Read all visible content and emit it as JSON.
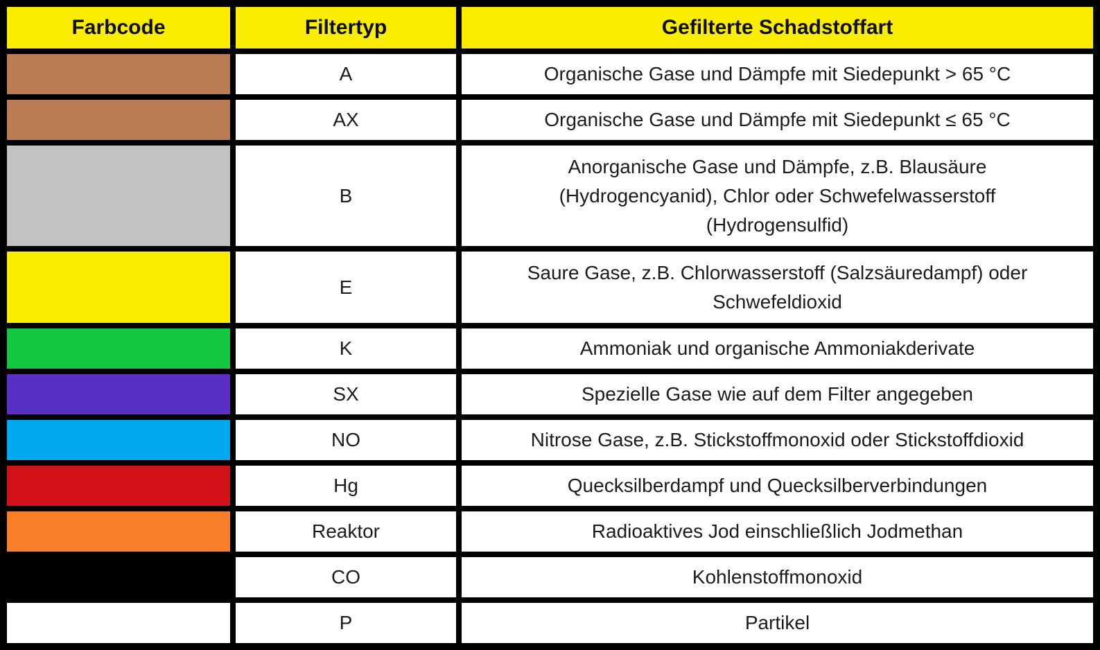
{
  "table": {
    "headers": [
      {
        "label": "Farbcode"
      },
      {
        "label": "Filtertyp"
      },
      {
        "label": "Gefilterte Schadstoffart"
      }
    ],
    "header_bg_color": "#FAED00",
    "grid_color": "#000000",
    "rows": [
      {
        "color_name": "brown",
        "color": "#BA7C53",
        "type": "A",
        "description": "Organische Gase und Dämpfe mit Siedepunkt > 65 °C"
      },
      {
        "color_name": "brown",
        "color": "#BA7C53",
        "type": "AX",
        "description": "Organische Gase und Dämpfe mit Siedepunkt ≤ 65 °C"
      },
      {
        "color_name": "gray",
        "color": "#C2C2C2",
        "type": "B",
        "description": "Anorganische Gase und Dämpfe, z.B. Blausäure (Hydrogencyanid), Chlor oder Schwefelwasserstoff (Hydrogensulfid)"
      },
      {
        "color_name": "yellow",
        "color": "#FAED00",
        "type": "E",
        "description": "Saure Gase, z.B. Chlorwasserstoff (Salzsäuredampf) oder Schwefeldioxid"
      },
      {
        "color_name": "green",
        "color": "#12C843",
        "type": "K",
        "description": "Ammoniak und organische Ammoniakderivate"
      },
      {
        "color_name": "purple",
        "color": "#5A2FC6",
        "type": "SX",
        "description": "Spezielle Gase wie auf dem Filter angegeben"
      },
      {
        "color_name": "blue",
        "color": "#00A9EF",
        "type": "NO",
        "description": "Nitrose Gase, z.B. Stickstoffmonoxid oder Stickstoffdioxid"
      },
      {
        "color_name": "red",
        "color": "#D21017",
        "type": "Hg",
        "description": "Quecksilberdampf und Quecksilberverbindungen"
      },
      {
        "color_name": "orange",
        "color": "#FA7E27",
        "type": "Reaktor",
        "description": "Radioaktives Jod einschließlich Jodmethan"
      },
      {
        "color_name": "black",
        "color": "#000000",
        "type": "CO",
        "description": "Kohlenstoffmonoxid"
      },
      {
        "color_name": "white",
        "color": "#FFFFFF",
        "type": "P",
        "description": "Partikel"
      }
    ]
  }
}
